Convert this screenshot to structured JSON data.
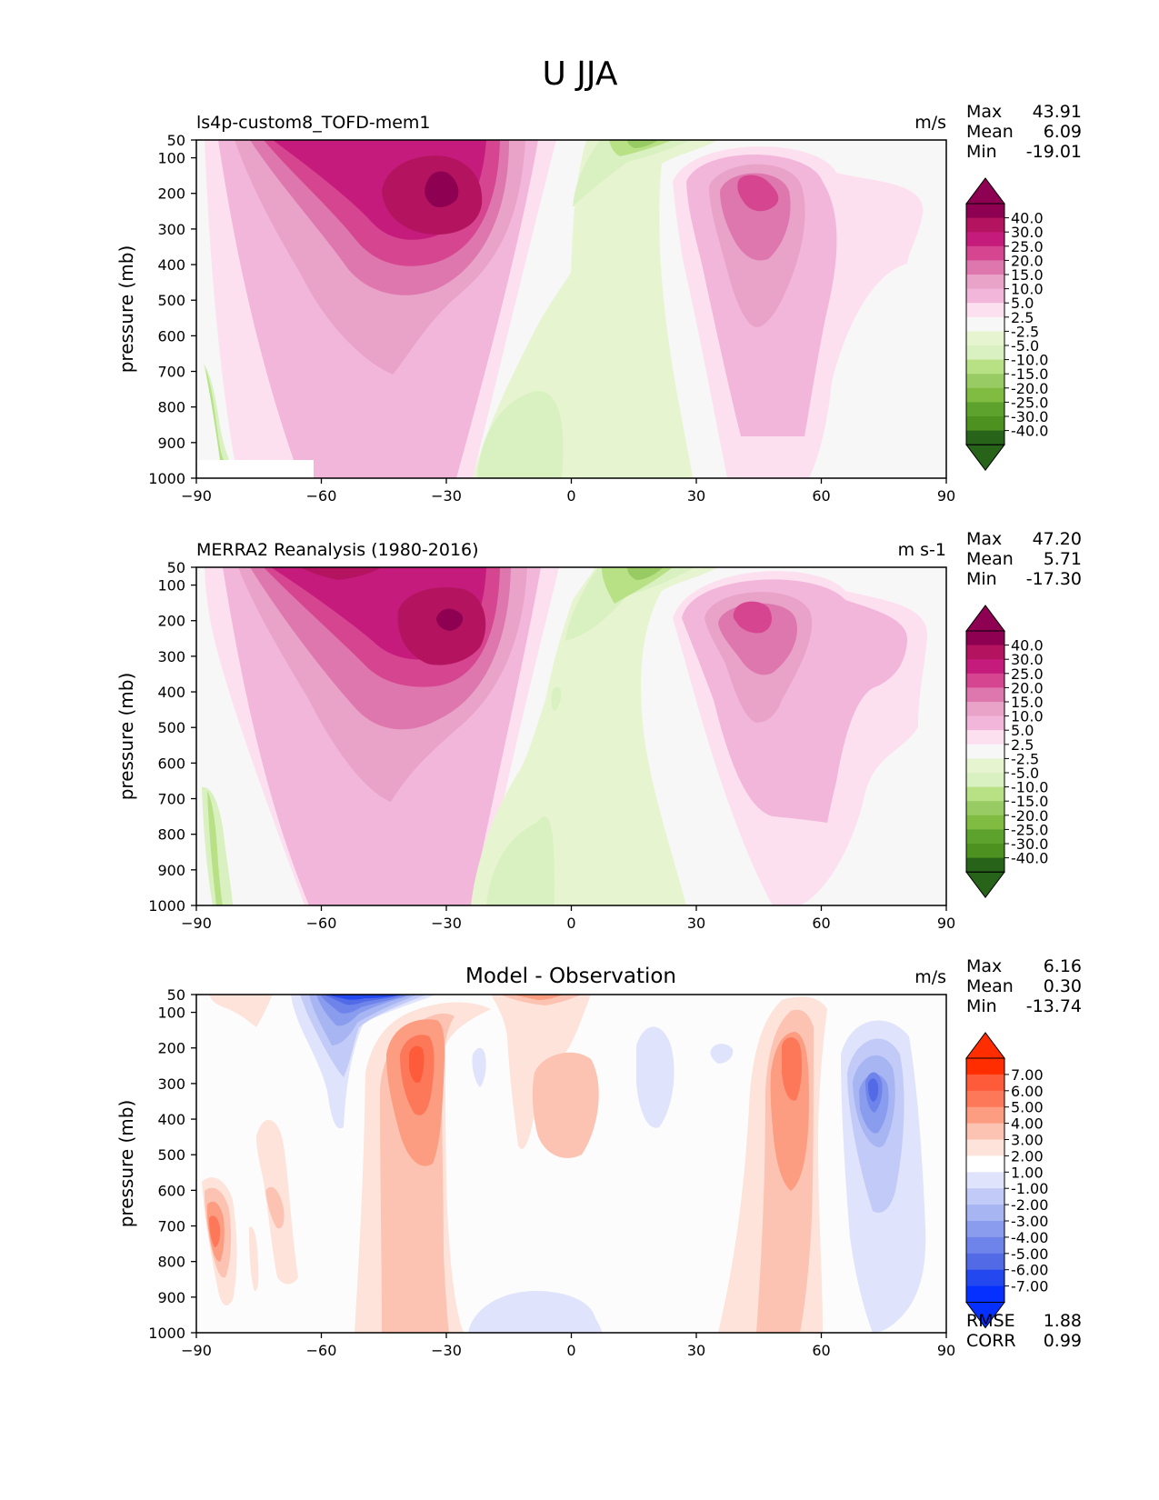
{
  "figure_title": "U JJA",
  "colors": {
    "pink_scale": [
      "#8e0152",
      "#b4145f",
      "#c51b7d",
      "#d6458f",
      "#de77ae",
      "#e9a3c9",
      "#f1b6da",
      "#fde0ef",
      "#f7f7f7",
      "#e6f5d0",
      "#d9f0c0",
      "#b8e186",
      "#98cb64",
      "#7fbc41",
      "#5ea22e",
      "#4d9221",
      "#276419"
    ],
    "diff_scale": [
      "#ff2d00",
      "#fd5b3a",
      "#fc7859",
      "#fc9d82",
      "#fdc3b2",
      "#fde3da",
      "#ffffff",
      "#dfe3fb",
      "#c2cbf7",
      "#a7b5f3",
      "#8a9cee",
      "#6f84ea",
      "#526ae6",
      "#2448f0",
      "#0630ff"
    ]
  },
  "chart_data": [
    {
      "type": "contour",
      "title": "ls4p-custom8_TOFD-mem1",
      "units": "m/s",
      "xlabel": "",
      "ylabel": "pressure (mb)",
      "x_ticks": [
        "−90",
        "−60",
        "−30",
        "0",
        "30",
        "60",
        "90"
      ],
      "y_ticks": [
        "50",
        "100",
        "200",
        "300",
        "400",
        "500",
        "600",
        "700",
        "800",
        "900",
        "1000"
      ],
      "xlim": [
        -90,
        90
      ],
      "ylim": [
        1000,
        50
      ],
      "stats": [
        {
          "label": "Max",
          "value": "43.91"
        },
        {
          "label": "Mean",
          "value": "6.09"
        },
        {
          "label": "Min",
          "value": "-19.01"
        }
      ],
      "colorbar_labels": [
        "40.0",
        "30.0",
        "25.0",
        "20.0",
        "15.0",
        "10.0",
        "5.0",
        "2.5",
        "-2.5",
        "-5.0",
        "-10.0",
        "-15.0",
        "-20.0",
        "-25.0",
        "-30.0",
        "-40.0"
      ],
      "features": [
        {
          "name": "SH jet core",
          "lon": -30,
          "p": 200,
          "max": 43.91
        },
        {
          "name": "NH jet core",
          "lon": 45,
          "p": 200,
          "max": 22
        },
        {
          "name": "tropical easterlies",
          "lon": 15,
          "p": 75,
          "min": -19.01
        }
      ]
    },
    {
      "type": "contour",
      "title": "MERRA2 Reanalysis (1980-2016)",
      "units": "m s-1",
      "xlabel": "",
      "ylabel": "pressure (mb)",
      "x_ticks": [
        "−90",
        "−60",
        "−30",
        "0",
        "30",
        "60",
        "90"
      ],
      "y_ticks": [
        "50",
        "100",
        "200",
        "300",
        "400",
        "500",
        "600",
        "700",
        "800",
        "900",
        "1000"
      ],
      "xlim": [
        -90,
        90
      ],
      "ylim": [
        1000,
        50
      ],
      "stats": [
        {
          "label": "Max",
          "value": "47.20"
        },
        {
          "label": "Mean",
          "value": "5.71"
        },
        {
          "label": "Min",
          "value": "-17.30"
        }
      ],
      "colorbar_labels": [
        "40.0",
        "30.0",
        "25.0",
        "20.0",
        "15.0",
        "10.0",
        "5.0",
        "2.5",
        "-2.5",
        "-5.0",
        "-10.0",
        "-15.0",
        "-20.0",
        "-25.0",
        "-30.0",
        "-40.0"
      ],
      "features": [
        {
          "name": "SH jet core",
          "lon": -28,
          "p": 200,
          "max": 47.2
        },
        {
          "name": "NH jet core",
          "lon": 43,
          "p": 200,
          "max": 20
        },
        {
          "name": "tropical easterlies",
          "lon": 12,
          "p": 75,
          "min": -17.3
        }
      ]
    },
    {
      "type": "contour",
      "title": "Model - Observation",
      "units": "m/s",
      "xlabel": "",
      "ylabel": "pressure (mb)",
      "x_ticks": [
        "−90",
        "−60",
        "−30",
        "0",
        "30",
        "60",
        "90"
      ],
      "y_ticks": [
        "50",
        "100",
        "200",
        "300",
        "400",
        "500",
        "600",
        "700",
        "800",
        "900",
        "1000"
      ],
      "xlim": [
        -90,
        90
      ],
      "ylim": [
        1000,
        50
      ],
      "stats": [
        {
          "label": "Max",
          "value": "6.16"
        },
        {
          "label": "Mean",
          "value": "0.30"
        },
        {
          "label": "Min",
          "value": "-13.74"
        }
      ],
      "colorbar_labels": [
        "7.00",
        "6.00",
        "5.00",
        "4.00",
        "3.00",
        "2.00",
        "1.00",
        "-1.00",
        "-2.00",
        "-3.00",
        "-4.00",
        "-5.00",
        "-6.00",
        "-7.00"
      ],
      "metrics": [
        {
          "label": "RMSE",
          "value": "1.88"
        },
        {
          "label": "CORR",
          "value": "0.99"
        }
      ],
      "features": [
        {
          "name": "strong negative aloft",
          "lon": -52,
          "p": 60,
          "min": -13.74
        },
        {
          "name": "positive SH subtropics",
          "lon": -37,
          "p": 250,
          "max": 6.16
        },
        {
          "name": "positive NH midlatitudes",
          "lon": 52,
          "p": 300
        },
        {
          "name": "negative NH high latitudes",
          "lon": 72,
          "p": 300
        }
      ]
    }
  ]
}
